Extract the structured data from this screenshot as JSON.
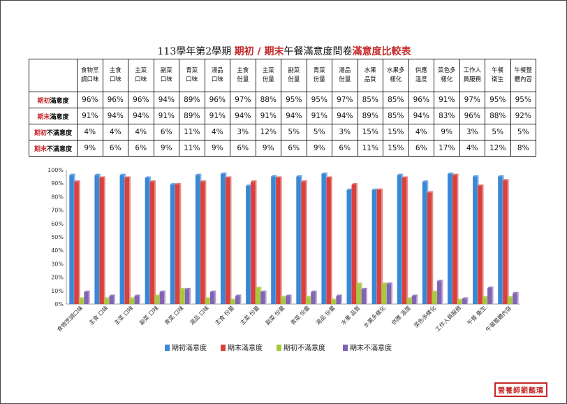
{
  "title": {
    "prefix": "113學年第2學期 ",
    "highlight1": "期初 / 期末",
    "middle": "午餐滿意度問卷",
    "highlight2": "滿意度比較表"
  },
  "stamp": "營養師劉懿瑱",
  "table": {
    "columns": [
      "食物烹調口味",
      "主食口味",
      "主菜口味",
      "副菜口味",
      "青菜口味",
      "湯品口味",
      "主食份量",
      "主菜份量",
      "副菜份量",
      "青菜份量",
      "湯品份量",
      "水果品質",
      "水果多樣化",
      "供應溫度",
      "菜色多樣化",
      "工作人員服務",
      "午餐衛生",
      "午餐整體內容"
    ],
    "column_lines": [
      [
        "食物烹",
        "調口味"
      ],
      [
        "主食",
        "口味"
      ],
      [
        "主菜",
        "口味"
      ],
      [
        "副菜",
        "口味"
      ],
      [
        "青菜",
        "口味"
      ],
      [
        "湯品",
        "口味"
      ],
      [
        "主食",
        "份量"
      ],
      [
        "主菜",
        "份量"
      ],
      [
        "副菜",
        "份量"
      ],
      [
        "青菜",
        "份量"
      ],
      [
        "湯品",
        "份量"
      ],
      [
        "水果",
        "品質"
      ],
      [
        "水果多",
        "樣化"
      ],
      [
        "供應",
        "溫度"
      ],
      [
        "菜色多",
        "樣化"
      ],
      [
        "工作人",
        "員服務"
      ],
      [
        "午餐",
        "衛生"
      ],
      [
        "午餐整",
        "體內容"
      ]
    ],
    "rows": [
      {
        "label_red": "期初",
        "label_rest": "滿意度",
        "values": [
          "96%",
          "96%",
          "96%",
          "94%",
          "89%",
          "96%",
          "97%",
          "88%",
          "95%",
          "95%",
          "97%",
          "85%",
          "85%",
          "96%",
          "91%",
          "97%",
          "95%",
          "95%"
        ]
      },
      {
        "label_red": "期末",
        "label_rest": "滿意度",
        "values": [
          "91%",
          "94%",
          "94%",
          "91%",
          "89%",
          "91%",
          "94%",
          "91%",
          "94%",
          "91%",
          "94%",
          "89%",
          "85%",
          "94%",
          "83%",
          "96%",
          "88%",
          "92%"
        ]
      },
      {
        "label_red": "期初",
        "label_rest": "不滿意度",
        "values": [
          "4%",
          "4%",
          "4%",
          "6%",
          "11%",
          "4%",
          "3%",
          "12%",
          "5%",
          "5%",
          "3%",
          "15%",
          "15%",
          "4%",
          "9%",
          "3%",
          "5%",
          "5%"
        ]
      },
      {
        "label_red": "期末",
        "label_rest": "不滿意度",
        "values": [
          "9%",
          "6%",
          "6%",
          "9%",
          "11%",
          "9%",
          "6%",
          "9%",
          "6%",
          "9%",
          "6%",
          "11%",
          "15%",
          "6%",
          "17%",
          "4%",
          "12%",
          "8%"
        ]
      }
    ]
  },
  "chart_data": {
    "type": "bar",
    "categories": [
      "食物烹調口味",
      "主食 口味",
      "主菜 口味",
      "副菜 口味",
      "青菜 口味",
      "湯品 口味",
      "主食 份量",
      "主菜 份量",
      "副菜 份量",
      "青菜 份量",
      "湯品 份量",
      "水果 品質",
      "水果多樣化",
      "供應 溫度",
      "菜色多樣化",
      "工作人員服務",
      "午餐 衛生",
      "午餐整體內容"
    ],
    "series": [
      {
        "name": "期初滿意度",
        "color": "#3a87d6",
        "values": [
          96,
          96,
          96,
          94,
          89,
          96,
          97,
          88,
          95,
          95,
          97,
          85,
          85,
          96,
          91,
          97,
          95,
          95
        ]
      },
      {
        "name": "期末滿意度",
        "color": "#d9413c",
        "values": [
          91,
          94,
          94,
          91,
          89,
          91,
          94,
          91,
          94,
          91,
          94,
          89,
          85,
          94,
          83,
          96,
          88,
          92
        ]
      },
      {
        "name": "期初不滿意度",
        "color": "#a7c83c",
        "values": [
          4,
          4,
          4,
          6,
          11,
          4,
          3,
          12,
          5,
          5,
          3,
          15,
          15,
          4,
          9,
          3,
          5,
          5
        ]
      },
      {
        "name": "期末不滿意度",
        "color": "#8264b4",
        "values": [
          9,
          6,
          6,
          9,
          11,
          9,
          6,
          9,
          6,
          9,
          6,
          11,
          15,
          6,
          17,
          4,
          12,
          8
        ]
      }
    ],
    "yticks": [
      "0%",
      "10%",
      "20%",
      "30%",
      "40%",
      "50%",
      "60%",
      "70%",
      "80%",
      "90%",
      "100%"
    ],
    "ylim": [
      0,
      100
    ],
    "legend_position": "bottom",
    "grid": false
  }
}
